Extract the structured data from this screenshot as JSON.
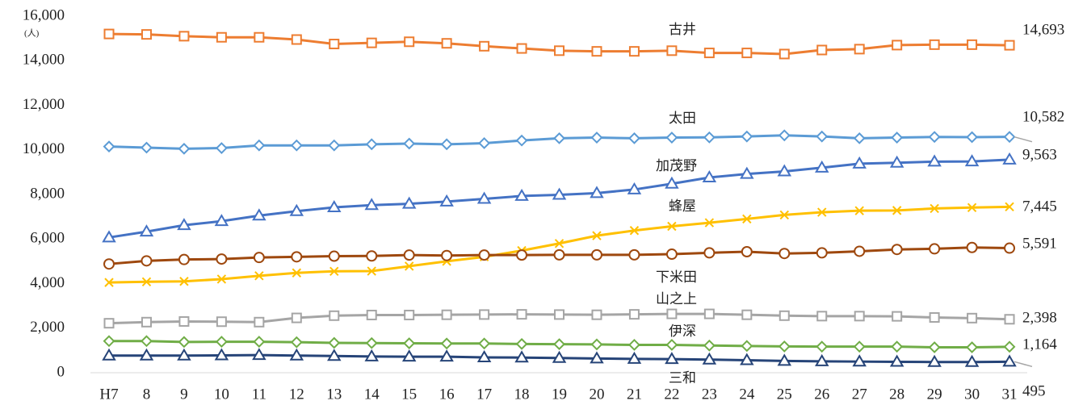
{
  "chart_data": {
    "type": "line",
    "y_unit": "(人)",
    "categories": [
      "H7",
      "8",
      "9",
      "10",
      "11",
      "12",
      "13",
      "14",
      "15",
      "16",
      "17",
      "18",
      "19",
      "20",
      "21",
      "22",
      "23",
      "24",
      "25",
      "26",
      "27",
      "28",
      "29",
      "30",
      "31"
    ],
    "ylim": [
      0,
      16000
    ],
    "yticks": [
      {
        "value": 0,
        "label": "0"
      },
      {
        "value": 2000,
        "label": "2,000"
      },
      {
        "value": 4000,
        "label": "4,000"
      },
      {
        "value": 6000,
        "label": "6,000"
      },
      {
        "value": 8000,
        "label": "8,000"
      },
      {
        "value": 10000,
        "label": "10,000"
      },
      {
        "value": 12000,
        "label": "12,000"
      },
      {
        "value": 14000,
        "label": "14,000"
      },
      {
        "value": 16000,
        "label": "16,000"
      }
    ],
    "grid": false,
    "series": [
      {
        "name": "古井",
        "color": "#ed7d31",
        "marker": "square",
        "values": [
          15200,
          15180,
          15100,
          15050,
          15050,
          14950,
          14750,
          14800,
          14850,
          14780,
          14650,
          14550,
          14450,
          14420,
          14420,
          14450,
          14350,
          14350,
          14300,
          14480,
          14520,
          14700,
          14720,
          14720,
          14693
        ],
        "value_labels": [
          null,
          null,
          null,
          null,
          null,
          null,
          null,
          null,
          null,
          null,
          null,
          null,
          null,
          null,
          null,
          null,
          null,
          null,
          null,
          null,
          null,
          null,
          null,
          null,
          "14,693"
        ]
      },
      {
        "name": "太田",
        "color": "#5b9bd5",
        "marker": "diamond",
        "values": [
          10150,
          10100,
          10050,
          10080,
          10200,
          10200,
          10200,
          10250,
          10280,
          10250,
          10300,
          10420,
          10520,
          10550,
          10520,
          10550,
          10560,
          10600,
          10650,
          10600,
          10520,
          10550,
          10580,
          10570,
          10582
        ],
        "value_labels": [
          null,
          null,
          null,
          null,
          null,
          null,
          null,
          null,
          null,
          null,
          null,
          null,
          null,
          null,
          null,
          null,
          null,
          null,
          null,
          null,
          null,
          null,
          null,
          null,
          "10,582"
        ]
      },
      {
        "name": "加茂野",
        "color": "#4472c4",
        "marker": "triangle",
        "values": [
          6070,
          6330,
          6620,
          6800,
          7050,
          7250,
          7420,
          7520,
          7580,
          7680,
          7800,
          7930,
          7980,
          8060,
          8220,
          8480,
          8760,
          8920,
          9030,
          9200,
          9380,
          9420,
          9470,
          9480,
          9563
        ],
        "value_labels": [
          null,
          null,
          null,
          null,
          null,
          null,
          null,
          null,
          null,
          null,
          null,
          null,
          null,
          null,
          null,
          null,
          null,
          null,
          null,
          null,
          null,
          null,
          null,
          null,
          "9,563"
        ]
      },
      {
        "name": "蜂屋",
        "color": "#ffc000",
        "marker": "x",
        "values": [
          4050,
          4080,
          4100,
          4200,
          4350,
          4480,
          4550,
          4560,
          4780,
          5000,
          5200,
          5480,
          5800,
          6150,
          6380,
          6570,
          6730,
          6900,
          7080,
          7200,
          7270,
          7280,
          7370,
          7410,
          7445
        ],
        "value_labels": [
          null,
          null,
          null,
          null,
          null,
          null,
          null,
          null,
          null,
          null,
          null,
          null,
          null,
          null,
          null,
          null,
          null,
          null,
          null,
          null,
          null,
          null,
          null,
          null,
          "7,445"
        ]
      },
      {
        "name": "下米田",
        "color": "#9e480e",
        "marker": "circle",
        "values": [
          4880,
          5020,
          5080,
          5100,
          5170,
          5200,
          5230,
          5240,
          5280,
          5260,
          5280,
          5280,
          5290,
          5290,
          5290,
          5320,
          5380,
          5430,
          5350,
          5380,
          5450,
          5530,
          5560,
          5620,
          5591
        ],
        "value_labels": [
          null,
          null,
          null,
          null,
          null,
          null,
          null,
          null,
          null,
          null,
          null,
          null,
          null,
          null,
          null,
          null,
          null,
          null,
          null,
          null,
          null,
          null,
          null,
          null,
          "5,591"
        ]
      },
      {
        "name": "山之上",
        "color": "#a5a5a5",
        "marker": "square",
        "values": [
          2220,
          2270,
          2300,
          2290,
          2270,
          2460,
          2560,
          2590,
          2590,
          2600,
          2610,
          2620,
          2610,
          2600,
          2620,
          2640,
          2640,
          2600,
          2560,
          2540,
          2540,
          2530,
          2480,
          2450,
          2398
        ],
        "value_labels": [
          null,
          null,
          null,
          null,
          null,
          null,
          null,
          null,
          null,
          null,
          null,
          null,
          null,
          null,
          null,
          null,
          null,
          null,
          null,
          null,
          null,
          null,
          null,
          null,
          "2,398"
        ]
      },
      {
        "name": "伊深",
        "color": "#70ad47",
        "marker": "diamond",
        "values": [
          1420,
          1420,
          1380,
          1390,
          1390,
          1370,
          1340,
          1330,
          1320,
          1310,
          1310,
          1290,
          1280,
          1270,
          1250,
          1250,
          1220,
          1200,
          1180,
          1170,
          1170,
          1170,
          1140,
          1140,
          1164
        ],
        "value_labels": [
          null,
          null,
          null,
          null,
          null,
          null,
          null,
          null,
          null,
          null,
          null,
          null,
          null,
          null,
          null,
          null,
          null,
          null,
          null,
          null,
          null,
          null,
          null,
          null,
          "1,164"
        ]
      },
      {
        "name": "三和",
        "color": "#264478",
        "marker": "triangle",
        "values": [
          770,
          770,
          770,
          780,
          790,
          770,
          750,
          730,
          720,
          720,
          690,
          680,
          660,
          640,
          620,
          610,
          590,
          560,
          530,
          510,
          500,
          490,
          480,
          480,
          495
        ],
        "value_labels": [
          null,
          null,
          null,
          null,
          null,
          null,
          null,
          null,
          null,
          null,
          null,
          null,
          null,
          null,
          null,
          null,
          null,
          null,
          null,
          null,
          null,
          null,
          null,
          null,
          "495"
        ]
      }
    ]
  }
}
